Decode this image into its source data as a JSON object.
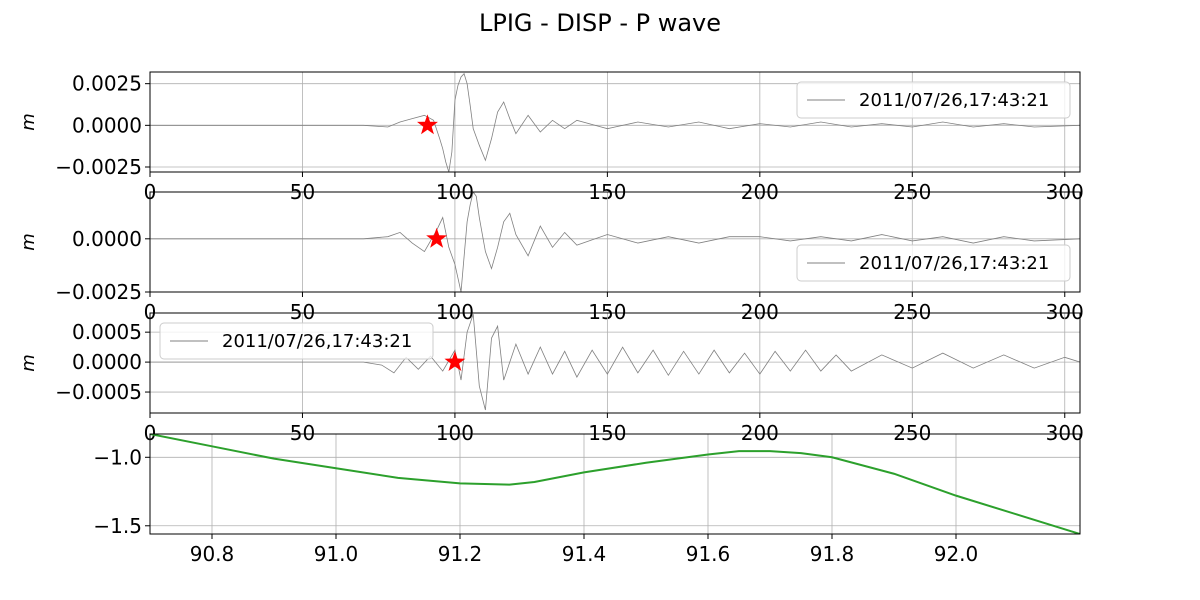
{
  "figure": {
    "title": "LPIG - DISP - P wave"
  },
  "chart_data": [
    {
      "type": "line",
      "panel": "top",
      "ylabel": "m",
      "xlim": [
        0,
        305
      ],
      "ylim": [
        -0.0028,
        0.0032
      ],
      "xticks": [
        0,
        50,
        100,
        150,
        200,
        250,
        300
      ],
      "yticks": [
        -0.0025,
        0.0,
        0.0025
      ],
      "ytick_labels": [
        "−0.0025",
        "0.0000",
        "0.0025"
      ],
      "grid": true,
      "legend": {
        "placement": "upper-right",
        "label": "2011/07/26,17:43:21"
      },
      "series": [
        {
          "color": "#808080",
          "x": [
            0,
            70,
            78,
            82,
            86,
            90,
            93,
            95,
            96,
            97,
            98,
            99,
            100,
            101,
            102,
            103,
            104,
            105,
            106,
            108,
            110,
            112,
            114,
            116,
            118,
            120,
            124,
            128,
            132,
            136,
            140,
            150,
            160,
            170,
            180,
            190,
            200,
            210,
            220,
            230,
            240,
            250,
            260,
            270,
            280,
            290,
            305
          ],
          "y": [
            0.0,
            0.0,
            -0.0001,
            0.0002,
            0.0004,
            0.0006,
            0.0003,
            -0.0008,
            -0.0014,
            -0.0022,
            -0.0028,
            -0.0016,
            0.0015,
            0.0024,
            0.0029,
            0.0031,
            0.0025,
            0.0012,
            -0.0002,
            -0.0012,
            -0.0021,
            -0.0008,
            0.0008,
            0.0014,
            0.0004,
            -0.0005,
            0.0006,
            -0.0004,
            0.0003,
            -0.0002,
            0.0003,
            -0.0002,
            0.0002,
            -0.0001,
            0.0002,
            -0.0002,
            0.0001,
            -0.0001,
            0.0002,
            -0.0001,
            0.0001,
            -0.0001,
            0.0002,
            -0.0001,
            0.0001,
            -0.0001,
            0.0
          ]
        }
      ],
      "marker": {
        "shape": "star",
        "color": "#ff0000",
        "x": 91,
        "y": 0.0
      }
    },
    {
      "type": "line",
      "panel": "middle",
      "ylabel": "m",
      "xlim": [
        0,
        305
      ],
      "ylim": [
        -0.0025,
        0.0022
      ],
      "xticks": [
        0,
        50,
        100,
        150,
        200,
        250,
        300
      ],
      "yticks": [
        -0.0025,
        0.0
      ],
      "ytick_labels": [
        "−0.0025",
        "0.0000"
      ],
      "grid": true,
      "legend": {
        "placement": "lower-right",
        "label": "2011/07/26,17:43:21"
      },
      "series": [
        {
          "color": "#808080",
          "x": [
            0,
            70,
            78,
            82,
            86,
            90,
            94,
            96,
            98,
            100,
            102,
            104,
            105,
            106,
            107,
            108,
            110,
            112,
            114,
            116,
            118,
            120,
            124,
            128,
            132,
            136,
            140,
            150,
            160,
            170,
            180,
            190,
            200,
            210,
            220,
            230,
            240,
            250,
            260,
            270,
            280,
            290,
            305
          ],
          "y": [
            0.0,
            0.0,
            0.0001,
            0.0003,
            -0.0002,
            -0.0006,
            0.0004,
            0.001,
            -0.0004,
            -0.0012,
            -0.0025,
            0.0008,
            0.0016,
            0.0022,
            0.002,
            0.001,
            -0.0006,
            -0.0014,
            -0.0004,
            0.0008,
            0.0012,
            0.0002,
            -0.0008,
            0.0006,
            -0.0004,
            0.0003,
            -0.0003,
            0.0002,
            -0.0002,
            0.0001,
            -0.0002,
            0.0001,
            0.0001,
            -0.0001,
            0.0001,
            -0.0001,
            0.0002,
            -0.0001,
            0.0001,
            -0.0002,
            0.0001,
            -0.0001,
            0.0
          ]
        }
      ],
      "marker": {
        "shape": "star",
        "color": "#ff0000",
        "x": 94,
        "y": 0.0
      }
    },
    {
      "type": "line",
      "panel": "lower",
      "ylabel": "m",
      "xlim": [
        0,
        305
      ],
      "ylim": [
        -0.00085,
        0.00082
      ],
      "xticks": [
        0,
        50,
        100,
        150,
        200,
        250,
        300
      ],
      "yticks": [
        -0.0005,
        0.0,
        0.0005
      ],
      "ytick_labels": [
        "−0.0005",
        "0.0000",
        "0.0005"
      ],
      "grid": true,
      "legend": {
        "placement": "upper-left",
        "label": "2011/07/26,17:43:21"
      },
      "series": [
        {
          "color": "#808080",
          "x": [
            0,
            70,
            76,
            80,
            84,
            88,
            92,
            96,
            100,
            102,
            104,
            106,
            108,
            110,
            112,
            114,
            116,
            120,
            124,
            128,
            132,
            136,
            140,
            145,
            150,
            155,
            160,
            165,
            170,
            175,
            180,
            185,
            190,
            195,
            200,
            205,
            210,
            215,
            220,
            225,
            230,
            240,
            250,
            260,
            270,
            280,
            290,
            300,
            305
          ],
          "y": [
            0.0,
            0.0,
            -5e-05,
            -0.00018,
            8e-05,
            -0.00012,
            0.0001,
            -0.00015,
            0.0002,
            -0.0003,
            0.0005,
            0.0008,
            -0.0004,
            -0.0008,
            0.0004,
            0.0006,
            -0.0003,
            0.0003,
            -0.0002,
            0.00025,
            -0.0002,
            0.00018,
            -0.00025,
            0.0002,
            -0.0002,
            0.00025,
            -0.00018,
            0.0002,
            -0.00022,
            0.00018,
            -0.0002,
            0.0002,
            -0.00018,
            0.00015,
            -0.0002,
            0.00018,
            -0.00015,
            0.0002,
            -0.00015,
            0.00012,
            -0.00015,
            0.00012,
            -0.0001,
            0.00015,
            -0.0001,
            0.00012,
            -0.0001,
            8e-05,
            0.0
          ]
        }
      ],
      "marker": {
        "shape": "star",
        "color": "#ff0000",
        "x": 100,
        "y": 0.0
      }
    },
    {
      "type": "line",
      "panel": "bottom",
      "ylabel": "",
      "xlim": [
        90.7,
        92.2
      ],
      "ylim": [
        -1.56,
        -0.83
      ],
      "xticks": [
        90.8,
        91.0,
        91.2,
        91.4,
        91.6,
        91.8,
        92.0
      ],
      "xtick_labels": [
        "90.8",
        "91.0",
        "91.2",
        "91.4",
        "91.6",
        "91.8",
        "92.0"
      ],
      "yticks": [
        -1.5,
        -1.0
      ],
      "ytick_labels": [
        "−1.5",
        "−1.0"
      ],
      "grid": true,
      "series": [
        {
          "color": "#2ca02c",
          "x": [
            90.7,
            90.8,
            90.9,
            91.0,
            91.1,
            91.2,
            91.28,
            91.32,
            91.4,
            91.5,
            91.6,
            91.65,
            91.7,
            91.75,
            91.8,
            91.9,
            92.0,
            92.1,
            92.2
          ],
          "y": [
            -0.83,
            -0.92,
            -1.01,
            -1.08,
            -1.15,
            -1.19,
            -1.2,
            -1.18,
            -1.11,
            -1.04,
            -0.98,
            -0.955,
            -0.955,
            -0.97,
            -1.0,
            -1.12,
            -1.28,
            -1.42,
            -1.56
          ]
        }
      ]
    }
  ]
}
